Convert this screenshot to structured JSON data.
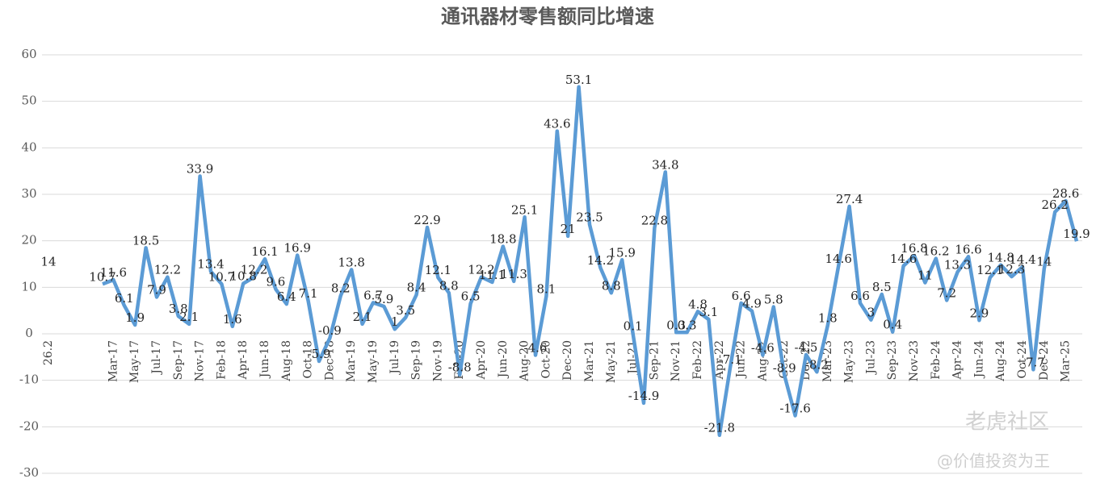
{
  "chart_data": {
    "type": "line",
    "title": "通讯器材零售额同比增速",
    "categories": [
      "26.2",
      null,
      null,
      null,
      null,
      null,
      "Mar-17",
      null,
      "May-17",
      null,
      "Jul-17",
      null,
      "Sep-17",
      null,
      "Nov-17",
      null,
      "Feb-18",
      null,
      "Apr-18",
      null,
      "Jun-18",
      null,
      "Aug-18",
      null,
      "Oct-18",
      null,
      "Dec-18",
      null,
      "Mar-19",
      null,
      "May-19",
      null,
      "Jul-19",
      null,
      "Sep-19",
      null,
      "Nov-19",
      null,
      "Feb-20",
      null,
      "Apr-20",
      null,
      "Jun-20",
      null,
      "Aug-20",
      null,
      "Oct-20",
      null,
      "Dec-20",
      null,
      "Mar-21",
      null,
      "May-21",
      null,
      "Jul-21",
      null,
      "Sep-21",
      null,
      "Nov-21",
      null,
      "Feb-22",
      null,
      "Apr-22",
      null,
      "Jun-22",
      null,
      "Aug-22",
      null,
      "Oct-22",
      null,
      "Dec-22",
      null,
      "Mar-23",
      null,
      "May-23",
      null,
      "Jul-23",
      null,
      "Sep-23",
      null,
      "Nov-23",
      null,
      "Feb-24",
      null,
      "Apr-24",
      null,
      "Jun-24",
      null,
      "Aug-24",
      null,
      "Oct-24",
      null,
      "Dec-24",
      null,
      "Mar-25",
      null
    ],
    "values": [
      14,
      null,
      null,
      null,
      null,
      10.7,
      11.6,
      6.1,
      1.9,
      18.5,
      7.9,
      12.2,
      3.8,
      2.1,
      33.9,
      13.4,
      10.7,
      1.6,
      10.8,
      12.2,
      16.1,
      9.6,
      6.4,
      16.9,
      7.1,
      -5.9,
      -0.9,
      8.2,
      13.8,
      2.1,
      6.7,
      5.9,
      1,
      3.5,
      8.4,
      22.9,
      12.1,
      8.8,
      -8.8,
      6.5,
      12.2,
      11.1,
      18.8,
      11.3,
      25.1,
      -4.6,
      8.1,
      43.6,
      21,
      53.1,
      23.5,
      14.2,
      8.8,
      15.9,
      0.1,
      -14.9,
      22.8,
      34.8,
      0.3,
      0.3,
      4.8,
      3.1,
      -21.8,
      -7.1,
      6.6,
      4.9,
      -4.6,
      5.8,
      -8.9,
      -17.6,
      -4.5,
      -8.2,
      1.8,
      14.6,
      27.4,
      6.6,
      3,
      8.5,
      0.4,
      14.6,
      16.8,
      11,
      16.2,
      7.2,
      13.3,
      16.6,
      2.9,
      12.1,
      14.8,
      12.3,
      14.4,
      -7.7,
      14,
      26.2,
      28.6,
      19.9
    ],
    "color": "#5b9bd5",
    "ylim": [
      -30,
      60
    ],
    "yticks": [
      -30,
      -20,
      -10,
      0,
      10,
      20,
      30,
      40,
      50,
      60
    ],
    "grid": true,
    "annotations": [
      "老虎社区",
      "@价值投资为王"
    ]
  }
}
